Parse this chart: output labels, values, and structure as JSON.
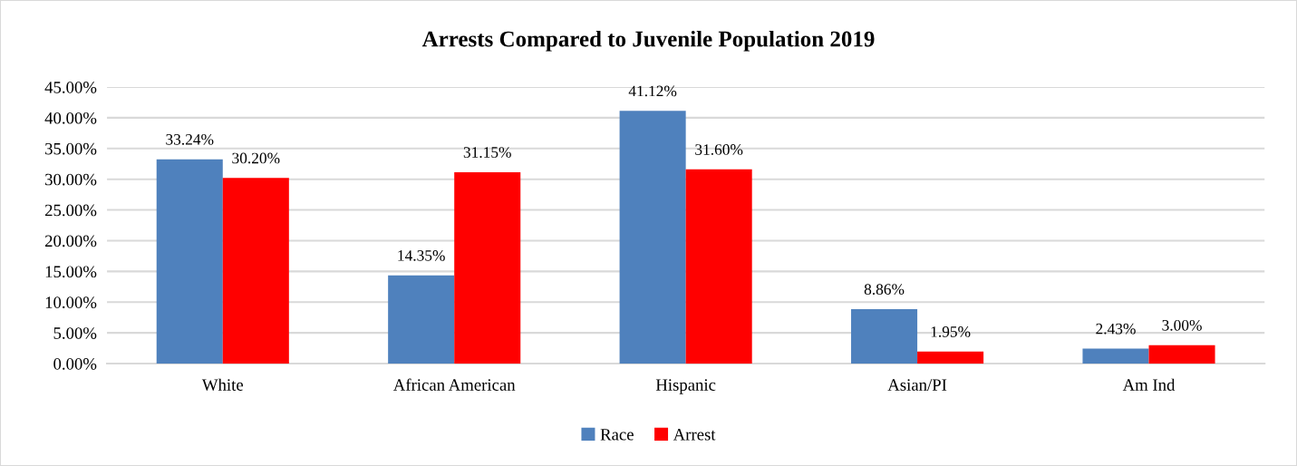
{
  "chart_data": {
    "type": "bar",
    "title": "Arrests Compared to Juvenile Population 2019",
    "categories": [
      "White",
      "African American",
      "Hispanic",
      "Asian/PI",
      "Am Ind"
    ],
    "series": [
      {
        "name": "Race",
        "color": "#4f81bd",
        "values": [
          33.24,
          14.35,
          41.12,
          8.86,
          2.43
        ],
        "value_labels": [
          "33.24%",
          "14.35%",
          "41.12%",
          "8.86%",
          "2.43%"
        ]
      },
      {
        "name": "Arrest",
        "color": "#ff0000",
        "values": [
          30.2,
          31.15,
          31.6,
          1.95,
          3.0
        ],
        "value_labels": [
          "30.20%",
          "31.15%",
          "31.60%",
          "1.95%",
          "3.00%"
        ]
      }
    ],
    "ylim": [
      0,
      45
    ],
    "yticks": [
      {
        "value": 0,
        "label": "0.00%"
      },
      {
        "value": 5,
        "label": "5.00%"
      },
      {
        "value": 10,
        "label": "10.00%"
      },
      {
        "value": 15,
        "label": "15.00%"
      },
      {
        "value": 20,
        "label": "20.00%"
      },
      {
        "value": 25,
        "label": "25.00%"
      },
      {
        "value": 30,
        "label": "30.00%"
      },
      {
        "value": 35,
        "label": "35.00%"
      },
      {
        "value": 40,
        "label": "40.00%"
      },
      {
        "value": 45,
        "label": "45.00%"
      }
    ],
    "grid": "y",
    "legend": "bottom"
  }
}
